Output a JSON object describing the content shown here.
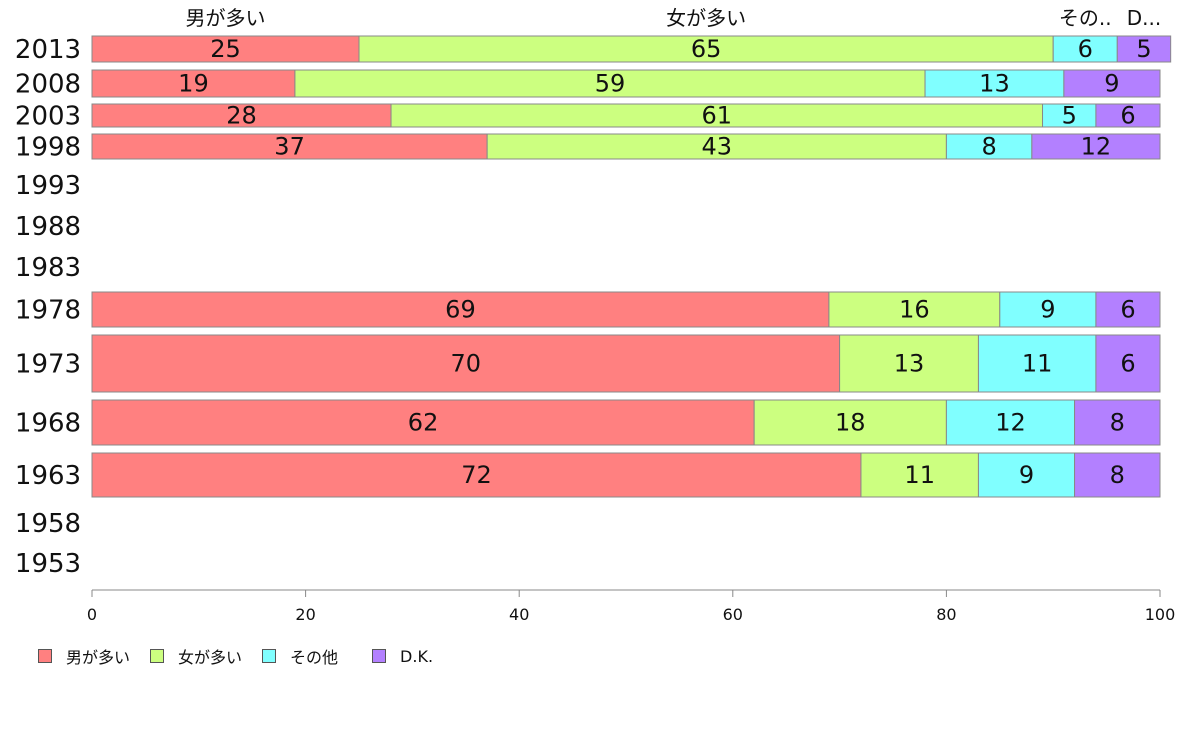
{
  "chart_data": {
    "type": "bar",
    "orientation": "horizontal",
    "stacked": true,
    "categories": [
      "2013",
      "2008",
      "2003",
      "1998",
      "1993",
      "1988",
      "1983",
      "1978",
      "1973",
      "1968",
      "1963",
      "1958",
      "1953"
    ],
    "series": [
      {
        "name": "男が多い",
        "color": "#ff8080",
        "values": [
          25,
          19,
          28,
          37,
          null,
          null,
          null,
          69,
          70,
          62,
          72,
          null,
          null
        ]
      },
      {
        "name": "女が多い",
        "color": "#ccff80",
        "values": [
          65,
          59,
          61,
          43,
          null,
          null,
          null,
          16,
          13,
          18,
          11,
          null,
          null
        ]
      },
      {
        "name": "その他",
        "color": "#80ffff",
        "values": [
          6,
          13,
          5,
          8,
          null,
          null,
          null,
          9,
          11,
          12,
          9,
          null,
          null
        ]
      },
      {
        "name": "D.K.",
        "color": "#b380ff",
        "values": [
          5,
          9,
          6,
          12,
          null,
          null,
          null,
          6,
          6,
          8,
          8,
          null,
          null
        ]
      }
    ],
    "top_labels": [
      "男が多い",
      "女が多い",
      "その..",
      "D..."
    ],
    "xlim": [
      0,
      100
    ],
    "xticks": [
      "0",
      "20",
      "40",
      "60",
      "80",
      "100"
    ],
    "grid": false,
    "legend_position": "bottom-left"
  },
  "legend": [
    {
      "label": "男が多い",
      "color": "#ff8080"
    },
    {
      "label": "女が多い",
      "color": "#ccff80"
    },
    {
      "label": "その他",
      "color": "#80ffff"
    },
    {
      "label": "D.K.",
      "color": "#b380ff"
    }
  ]
}
